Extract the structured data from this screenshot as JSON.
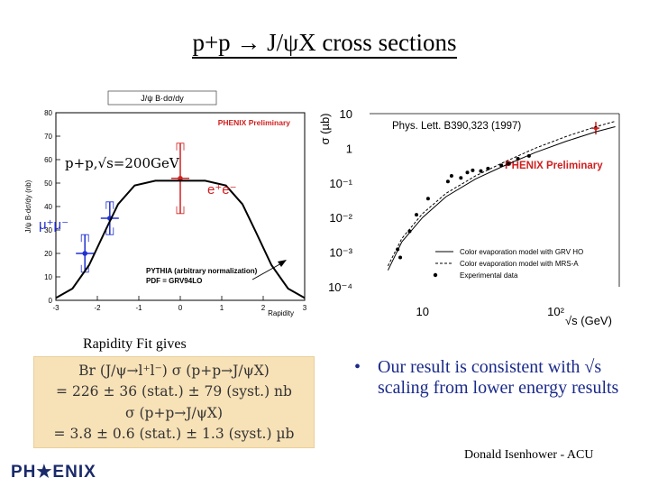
{
  "slide": {
    "title": "p+p → J/ψX cross sections",
    "fit_label": "Rapidity Fit gives",
    "result_lines": [
      "Br (J/ψ→l⁺l⁻) σ (p+p→J/ψX)",
      "= 226 ± 36 (stat.) ± 79 (syst.) nb",
      "σ (p+p→J/ψX)",
      "= 3.8 ± 0.6 (stat.) ± 1.3 (syst.) µb"
    ],
    "bullet": "Our result is consistent with √s scaling from lower energy results",
    "author": "Donald Isenhower - ACU",
    "logo": "PH★ENIX"
  },
  "left_plot": {
    "header": "J/ψ B·dσ/dy",
    "ylabel": "J/ψ B·dσ/dy (nb)",
    "xlabel": "Rapidity",
    "preliminary": "PHENIX Preliminary",
    "energy_label": "p+p,√s=200GeV",
    "ee_label": "e⁺e⁻",
    "mumu_label": "μ⁺μ⁻",
    "pythia_line1": "PYTHIA (arbitrary normalization)",
    "pythia_line2": "PDF = GRV94LO",
    "x_ticks": [
      "-3",
      "-2",
      "-1",
      "0",
      "1",
      "2",
      "3"
    ],
    "y_ticks": [
      "0",
      "10",
      "20",
      "30",
      "40",
      "50",
      "60",
      "70",
      "80"
    ]
  },
  "right_plot": {
    "citation": "Phys. Lett. B390,323 (1997)",
    "preliminary": "PHENIX Preliminary",
    "ylabel": "σ (µb)",
    "xlabel": "√s (GeV)",
    "y_ticks": [
      "10",
      "1",
      "10⁻¹",
      "10⁻²",
      "10⁻³",
      "10⁻⁴"
    ],
    "x_ticks": [
      "10",
      "10²"
    ],
    "legend": [
      "Color evaporation model with GRV HO",
      "Color evaporation model with MRS-A",
      "Experimental data"
    ]
  },
  "chart_data": [
    {
      "type": "scatter",
      "title": "J/ψ B·dσ/dy",
      "xlabel": "Rapidity",
      "ylabel": "J/ψ B·dσ/dy (nb)",
      "xlim": [
        -3,
        3
      ],
      "ylim": [
        0,
        80
      ],
      "series": [
        {
          "name": "e⁺e⁻",
          "color": "#d02020",
          "points": [
            {
              "x": 0.0,
              "y": 52,
              "err": 15
            }
          ]
        },
        {
          "name": "μ⁺μ⁻",
          "color": "#2030d0",
          "points": [
            {
              "x": -1.7,
              "y": 35,
              "err": 7
            },
            {
              "x": -2.3,
              "y": 20,
              "err": 8
            }
          ]
        },
        {
          "name": "PYTHIA (arbitrary normalization)",
          "color": "#000000",
          "curve": [
            [
              -3,
              1
            ],
            [
              -2.6,
              5
            ],
            [
              -2.2,
              15
            ],
            [
              -1.8,
              30
            ],
            [
              -1.5,
              41
            ],
            [
              -1.1,
              49
            ],
            [
              -0.6,
              51
            ],
            [
              0,
              51
            ],
            [
              0.6,
              51
            ],
            [
              1.1,
              49
            ],
            [
              1.5,
              41
            ],
            [
              1.8,
              30
            ],
            [
              2.2,
              15
            ],
            [
              2.6,
              5
            ],
            [
              3,
              1
            ]
          ]
        }
      ],
      "grid": false,
      "legend_position": "top-right"
    },
    {
      "type": "scatter",
      "xlabel": "√s (GeV)",
      "ylabel": "σ (µb)",
      "x_scale": "log",
      "y_scale": "log",
      "xlim": [
        4,
        300
      ],
      "ylim": [
        0.0001,
        10
      ],
      "series": [
        {
          "name": "Experimental data",
          "color": "#000000",
          "points": [
            [
              6.5,
              0.0012
            ],
            [
              6.8,
              0.0007
            ],
            [
              8.0,
              0.004
            ],
            [
              9.0,
              0.012
            ],
            [
              11.0,
              0.035
            ],
            [
              15.5,
              0.11
            ],
            [
              16.5,
              0.16
            ],
            [
              19.4,
              0.14
            ],
            [
              21.7,
              0.2
            ],
            [
              23.8,
              0.23
            ],
            [
              27.4,
              0.22
            ],
            [
              31,
              0.26
            ],
            [
              39,
              0.32
            ],
            [
              44,
              0.36
            ],
            [
              52,
              0.5
            ],
            [
              63,
              0.6
            ]
          ]
        },
        {
          "name": "PHENIX Preliminary",
          "color": "#d02020",
          "points": [
            [
              200,
              3.8
            ]
          ]
        },
        {
          "name": "Color evaporation model with GRV HO",
          "color": "#000000",
          "curve": [
            [
              5.5,
              0.0003
            ],
            [
              7,
              0.002
            ],
            [
              10,
              0.01
            ],
            [
              15,
              0.04
            ],
            [
              25,
              0.13
            ],
            [
              40,
              0.3
            ],
            [
              70,
              0.75
            ],
            [
              120,
              1.6
            ],
            [
              200,
              3.0
            ],
            [
              280,
              4.2
            ]
          ]
        },
        {
          "name": "Color evaporation model with MRS-A",
          "color": "#000000",
          "curve": [
            [
              5.5,
              0.0004
            ],
            [
              7,
              0.0025
            ],
            [
              10,
              0.013
            ],
            [
              15,
              0.05
            ],
            [
              25,
              0.16
            ],
            [
              40,
              0.38
            ],
            [
              70,
              1.0
            ],
            [
              120,
              2.2
            ],
            [
              200,
              4.2
            ],
            [
              280,
              6.0
            ]
          ]
        }
      ],
      "grid": false,
      "legend_position": "bottom-right"
    }
  ]
}
